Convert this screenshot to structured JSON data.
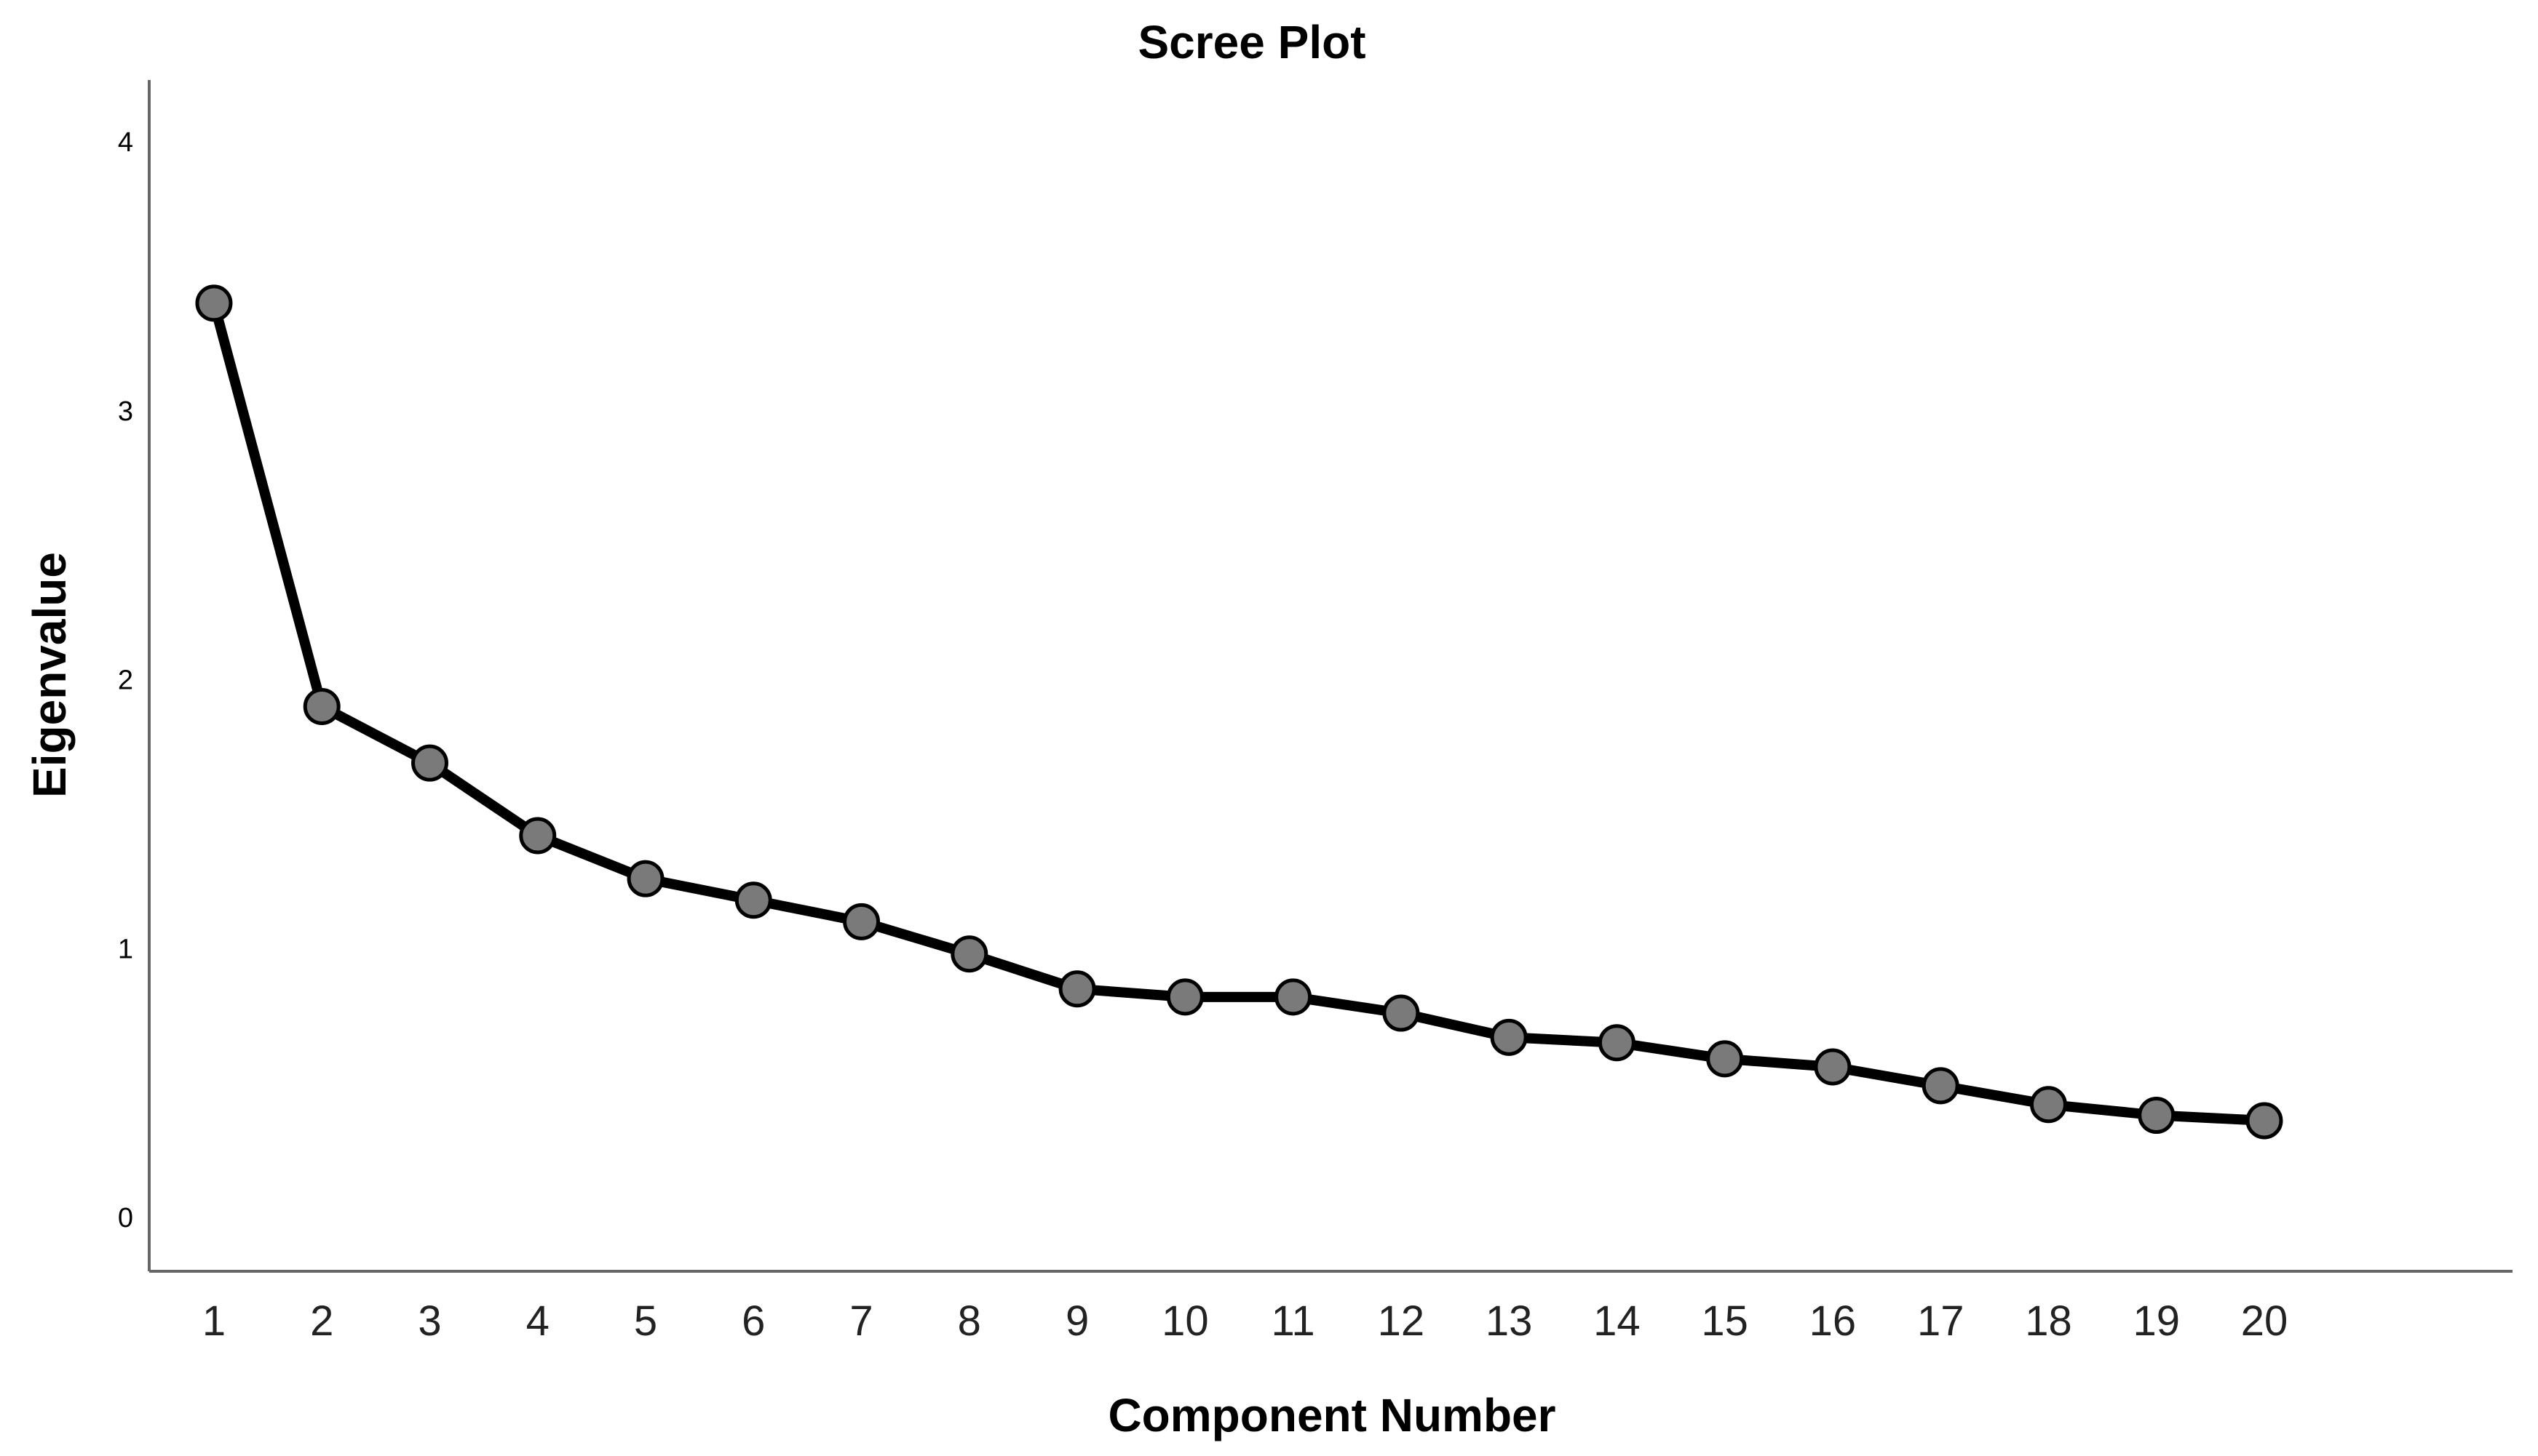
{
  "chart_data": {
    "type": "line",
    "title": "Scree Plot",
    "xlabel": "Component Number",
    "ylabel": "Eigenvalue",
    "x": [
      1,
      2,
      3,
      4,
      5,
      6,
      7,
      8,
      9,
      10,
      11,
      12,
      13,
      14,
      15,
      16,
      17,
      18,
      19,
      20
    ],
    "x_tick_labels": [
      "1",
      "2",
      "3",
      "4",
      "5",
      "6",
      "7",
      "8",
      "9",
      "10",
      "11",
      "12",
      "13",
      "14",
      "15",
      "16",
      "17",
      "18",
      "19",
      "20"
    ],
    "y_tick_labels": [
      "0",
      "1",
      "2",
      "3",
      "4"
    ],
    "y_ticks": [
      0,
      1,
      2,
      3,
      4
    ],
    "series": [
      {
        "values": [
          3.4,
          1.9,
          1.69,
          1.42,
          1.26,
          1.18,
          1.1,
          0.98,
          0.85,
          0.82,
          0.82,
          0.76,
          0.67,
          0.65,
          0.59,
          0.56,
          0.49,
          0.42,
          0.38,
          0.36
        ]
      }
    ],
    "xlim": [
      0.4,
      22.3
    ],
    "ylim": [
      -0.2,
      4.23
    ],
    "grid": false,
    "colors": {
      "line": "#000000",
      "marker_fill": "#7a7a7a",
      "axis": "#666666"
    }
  }
}
